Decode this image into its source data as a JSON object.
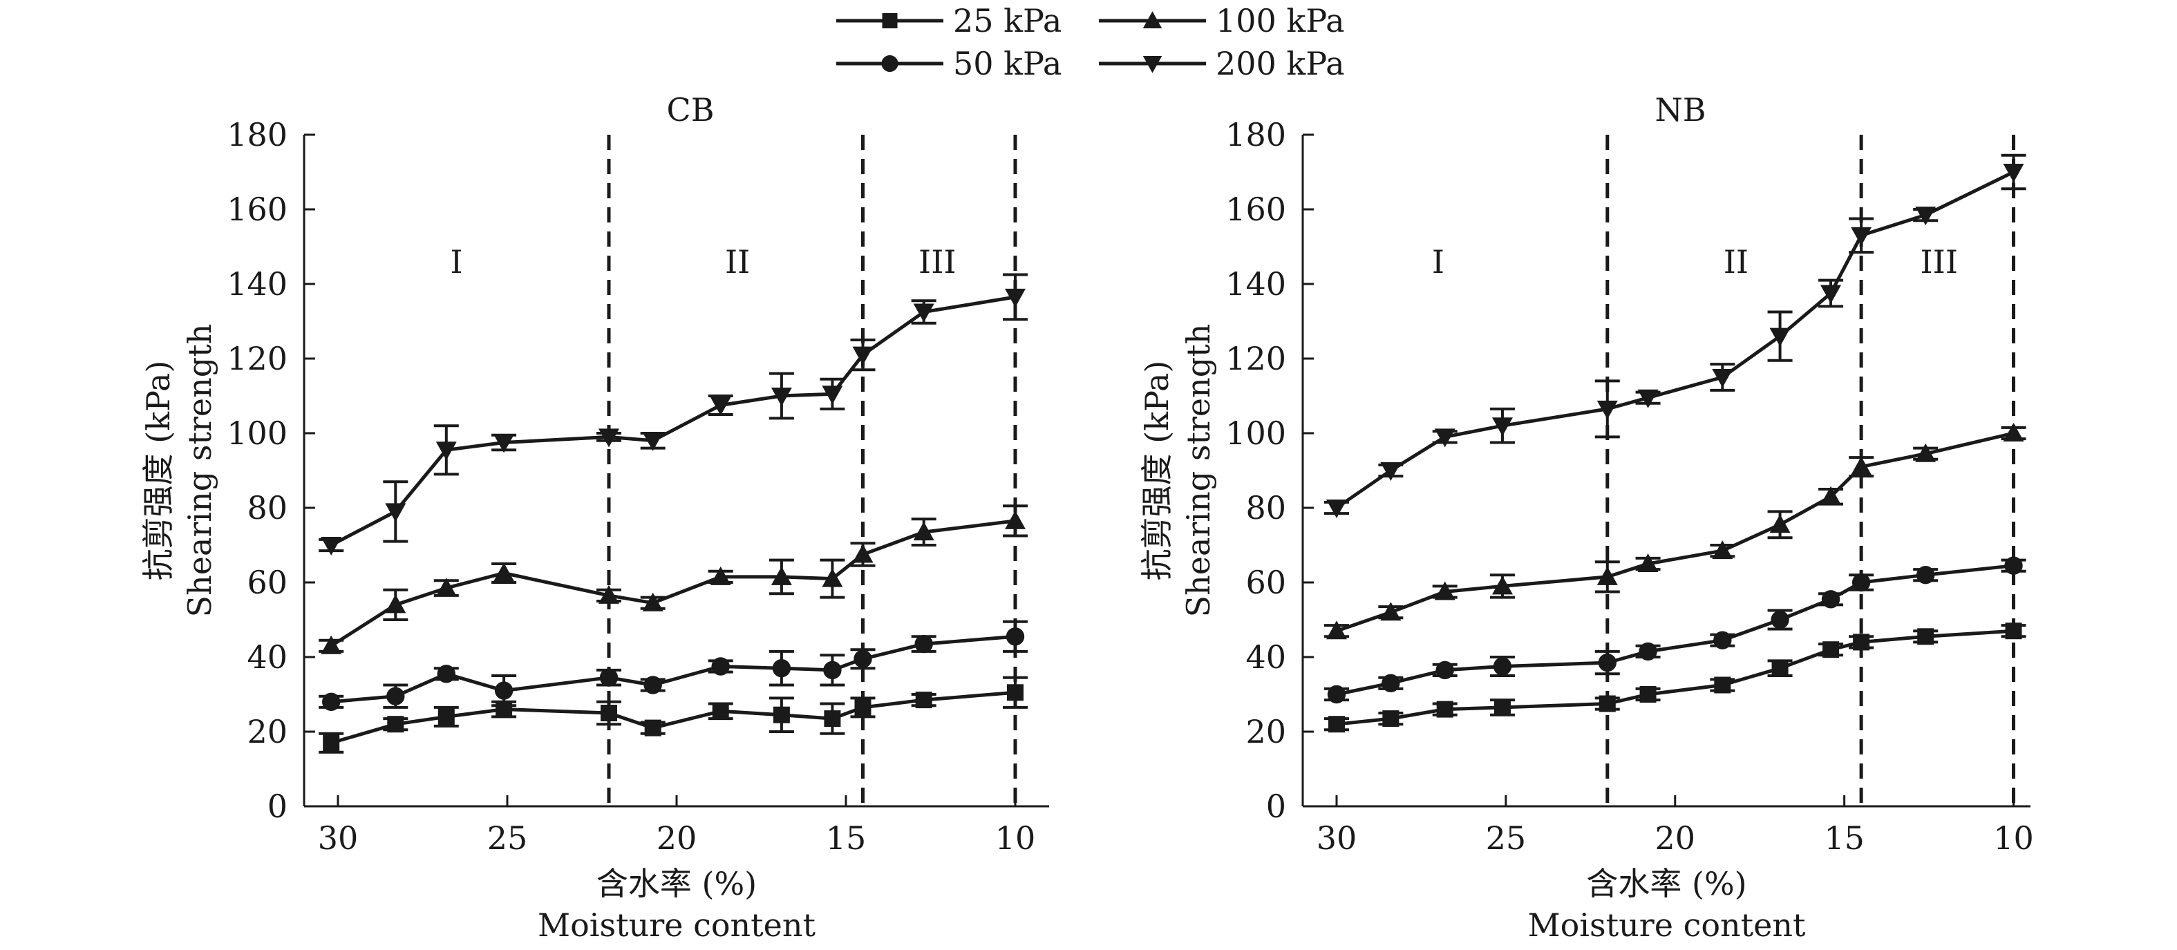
{
  "legend": {
    "entries": [
      {
        "label": "25 kPa",
        "marker": "square"
      },
      {
        "label": "100 kPa",
        "marker": "triangle-up"
      },
      {
        "label": "50 kPa",
        "marker": "circle"
      },
      {
        "label": "200 kPa",
        "marker": "triangle-down"
      }
    ]
  },
  "colors": {
    "line": "#1a1a1a",
    "background": "#ffffff"
  },
  "chart_data": [
    {
      "type": "line",
      "title": "CB",
      "ylabel_cn": "抗剪强度 (kPa)",
      "ylabel_en": "Shearing strength",
      "xlabel_cn": "含水率 (%)",
      "xlabel_en": "Moisture content",
      "xlim": [
        31,
        9
      ],
      "ylim": [
        0,
        180
      ],
      "xticks": [
        "30",
        "25",
        "20",
        "15",
        "10"
      ],
      "yticks": [
        "0",
        "20",
        "40",
        "60",
        "80",
        "100",
        "120",
        "140",
        "160",
        "180"
      ],
      "vlines": [
        22,
        14.5,
        10
      ],
      "regions": [
        {
          "label": "I",
          "x": 26.5,
          "y": 143
        },
        {
          "label": "II",
          "x": 18.2,
          "y": 143
        },
        {
          "label": "III",
          "x": 12.3,
          "y": 143
        }
      ],
      "x": [
        30.2,
        28.3,
        26.8,
        25.1,
        22.0,
        20.7,
        18.7,
        16.9,
        15.4,
        14.5,
        12.7,
        10.0
      ],
      "series": [
        {
          "name": "25 kPa",
          "marker": "square",
          "values": [
            17,
            22,
            24,
            26,
            25,
            21,
            25.5,
            24.5,
            23.5,
            26.5,
            28.5,
            30.5
          ],
          "errors": [
            2.5,
            1.5,
            2.5,
            2,
            3,
            1.5,
            2,
            4.5,
            4,
            2.5,
            1.5,
            4
          ]
        },
        {
          "name": "50 kPa",
          "marker": "circle",
          "values": [
            28,
            29.5,
            35.5,
            31,
            34.5,
            32.5,
            37.5,
            37,
            36.5,
            39.5,
            43.5,
            45.5
          ],
          "errors": [
            1.5,
            3,
            1.5,
            4,
            2,
            1.5,
            1.5,
            4.5,
            4,
            2.5,
            2,
            4
          ]
        },
        {
          "name": "100 kPa",
          "marker": "triangle-up",
          "values": [
            43,
            54,
            58.5,
            62.5,
            56.5,
            54.5,
            61.5,
            61.5,
            61,
            67.5,
            73.5,
            76.5
          ],
          "errors": [
            1.5,
            4,
            2,
            2.5,
            1.5,
            1.5,
            1.5,
            4.5,
            5,
            3,
            3.5,
            4
          ]
        },
        {
          "name": "200 kPa",
          "marker": "triangle-down",
          "values": [
            70,
            79,
            95.5,
            97.5,
            99,
            98,
            107.5,
            110,
            110.5,
            121,
            132.5,
            136.5
          ],
          "errors": [
            1.5,
            8,
            6.5,
            2,
            1,
            2,
            2.5,
            6,
            4,
            4,
            3,
            6
          ]
        }
      ]
    },
    {
      "type": "line",
      "title": "NB",
      "ylabel_cn": "抗剪强度 (kPa)",
      "ylabel_en": "Shearing strength",
      "xlabel_cn": "含水率 (%)",
      "xlabel_en": "Moisture content",
      "xlim": [
        31,
        9.5
      ],
      "ylim": [
        0,
        180
      ],
      "xticks": [
        "30",
        "25",
        "20",
        "15",
        "10"
      ],
      "yticks": [
        "0",
        "20",
        "40",
        "60",
        "80",
        "100",
        "120",
        "140",
        "160",
        "180"
      ],
      "vlines": [
        22,
        14.5,
        10
      ],
      "regions": [
        {
          "label": "I",
          "x": 27.0,
          "y": 143
        },
        {
          "label": "II",
          "x": 18.2,
          "y": 143
        },
        {
          "label": "III",
          "x": 12.2,
          "y": 143
        }
      ],
      "x": [
        30.0,
        28.4,
        26.8,
        25.1,
        22.0,
        20.8,
        18.6,
        16.9,
        15.4,
        14.5,
        12.6,
        10.0
      ],
      "series": [
        {
          "name": "25 kPa",
          "marker": "square",
          "values": [
            22,
            23.5,
            26,
            26.5,
            27.5,
            30,
            32.5,
            37,
            42,
            44,
            45.5,
            47
          ],
          "errors": [
            1.5,
            1.5,
            1.5,
            2,
            1.5,
            1.5,
            1.5,
            2,
            1.5,
            1.5,
            1.5,
            1.5
          ]
        },
        {
          "name": "50 kPa",
          "marker": "circle",
          "values": [
            30,
            33,
            36.5,
            37.5,
            38.5,
            41.5,
            44.5,
            50,
            55.5,
            60,
            62,
            64.5
          ],
          "errors": [
            1.5,
            1.5,
            1.5,
            2.5,
            3,
            1.5,
            1.5,
            2.5,
            1.5,
            2,
            1.5,
            1.5
          ]
        },
        {
          "name": "100 kPa",
          "marker": "triangle-up",
          "values": [
            47,
            52,
            57.5,
            59,
            61.5,
            65,
            68.5,
            75.5,
            83,
            91,
            94.5,
            100
          ],
          "errors": [
            1.5,
            1.5,
            1.5,
            3,
            4,
            1.5,
            1.5,
            3.5,
            2,
            2.5,
            1.5,
            1.5
          ]
        },
        {
          "name": "200 kPa",
          "marker": "triangle-down",
          "values": [
            80,
            90,
            99,
            102,
            106.5,
            109.5,
            115,
            126,
            137.5,
            153,
            158.5,
            170
          ],
          "errors": [
            1.5,
            1.5,
            1.5,
            4.5,
            7.5,
            1.5,
            3.5,
            6.5,
            3.5,
            4.5,
            1.5,
            4.5
          ]
        }
      ]
    }
  ]
}
